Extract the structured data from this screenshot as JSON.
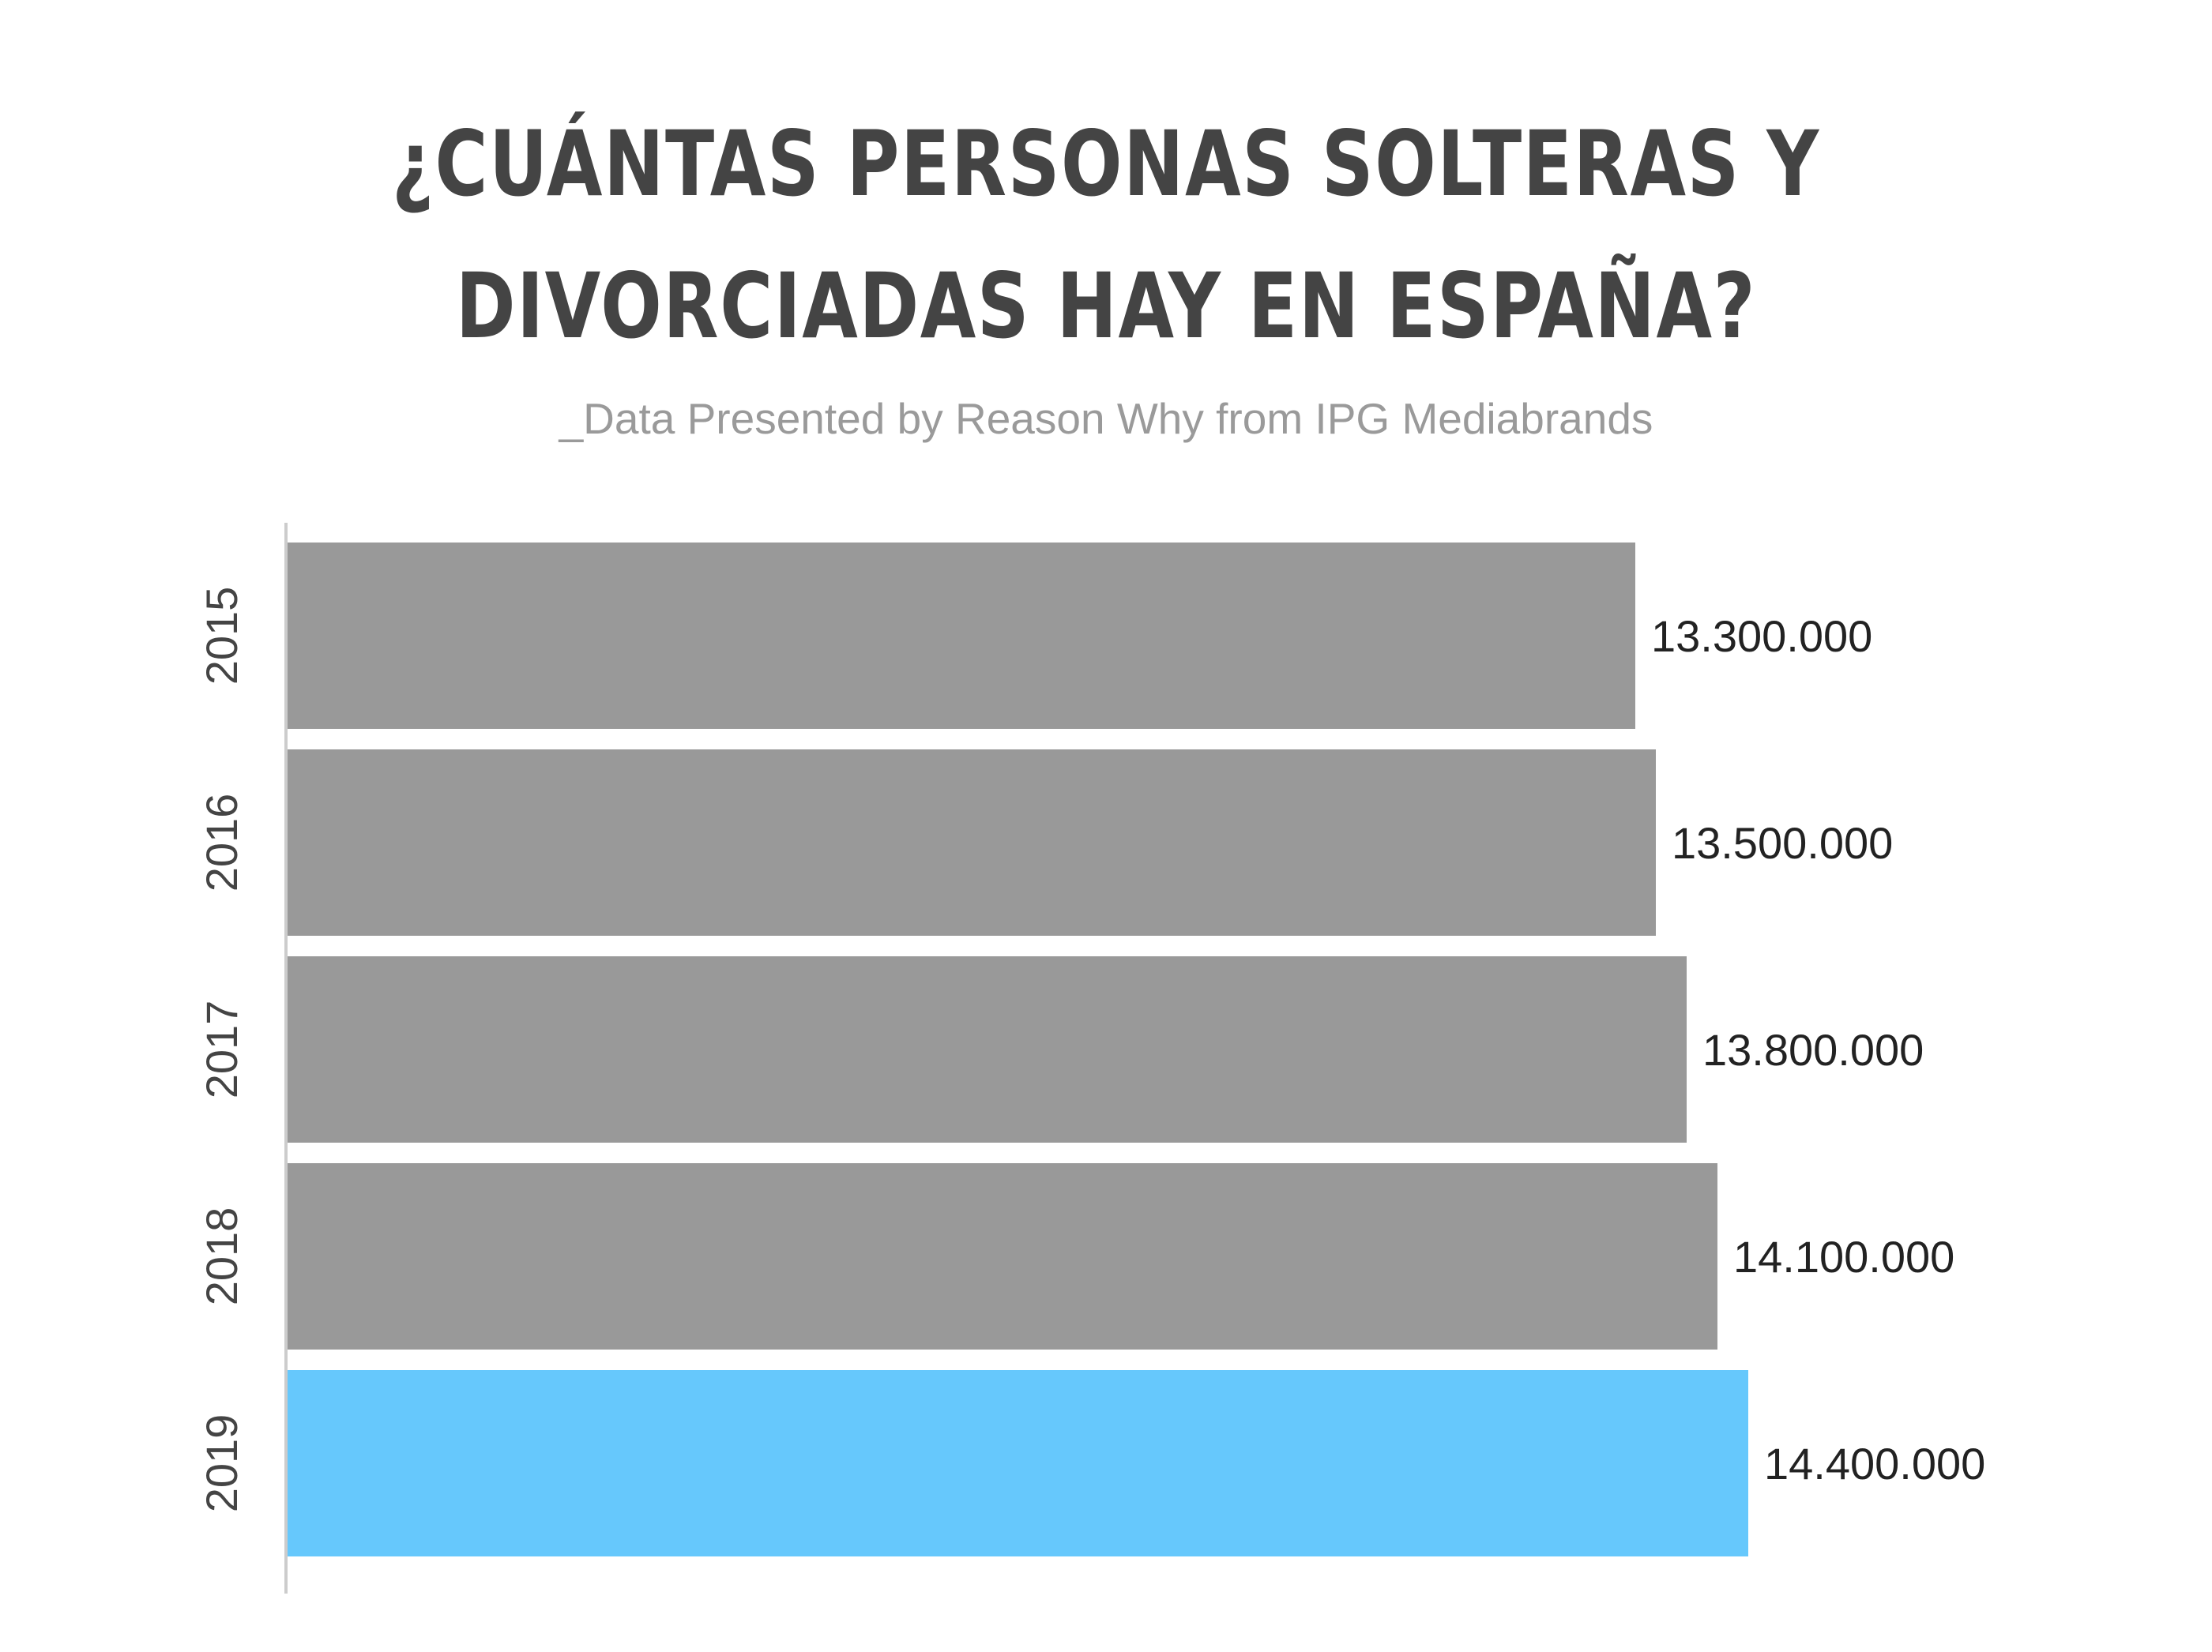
{
  "header": {
    "title_line1": "¿CUÁNTAS PERSONAS SOLTERAS Y",
    "title_line2": "DIVORCIADAS HAY EN ESPAÑA?",
    "subtitle": "_Data Presented by Reason Why from IPG Mediabrands"
  },
  "colors": {
    "bar_default": "#999999",
    "bar_highlight": "#66c8fc",
    "axis_line": "#cccccc",
    "title": "#444444",
    "subtitle": "#9a9a9a",
    "tick_label": "#444444",
    "value_label": "#222222"
  },
  "chart_data": {
    "type": "bar",
    "orientation": "horizontal",
    "categories": [
      "2015",
      "2016",
      "2017",
      "2018",
      "2019"
    ],
    "values": [
      13300000,
      13500000,
      13800000,
      14100000,
      14400000
    ],
    "value_labels": [
      "13.300.000",
      "13.500.000",
      "13.800.000",
      "14.100.000",
      "14.400.000"
    ],
    "highlight_category": "2019",
    "title": "¿CUÁNTAS PERSONAS SOLTERAS Y DIVORCIADAS HAY EN ESPAÑA?",
    "xlabel": "",
    "ylabel": "",
    "grid": false,
    "legend": "none"
  }
}
